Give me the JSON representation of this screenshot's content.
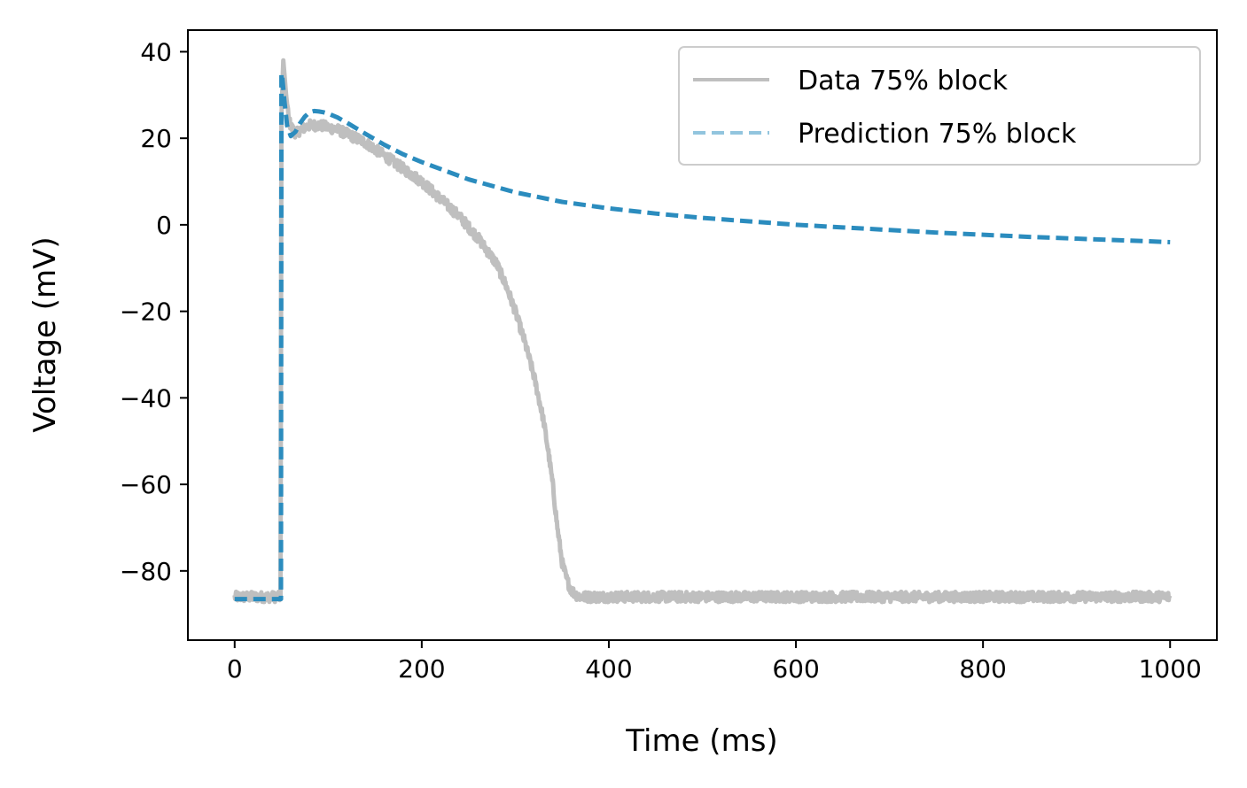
{
  "chart_data": {
    "type": "line",
    "title": "",
    "xlabel": "Time (ms)",
    "ylabel": "Voltage (mV)",
    "xlim": [
      -50,
      1050
    ],
    "ylim": [
      -96,
      45
    ],
    "x_ticks": [
      0,
      200,
      400,
      600,
      800,
      1000
    ],
    "y_ticks": [
      40,
      20,
      0,
      -20,
      -40,
      -60,
      -80
    ],
    "x_tick_labels": [
      "0",
      "200",
      "400",
      "600",
      "800",
      "1000"
    ],
    "y_tick_labels": [
      "40",
      "20",
      "0",
      "−20",
      "−40",
      "−60",
      "−80"
    ],
    "grid": false,
    "legend_position": "top-right",
    "series": [
      {
        "name": "Data 75% block",
        "color": "#bfbfbf",
        "style": "solid",
        "noise_amplitude_mV": 1.2,
        "x": [
          0,
          49,
          50,
          52,
          55,
          58,
          62,
          66,
          70,
          75,
          80,
          85,
          90,
          95,
          100,
          110,
          120,
          140,
          160,
          180,
          200,
          220,
          240,
          260,
          270,
          280,
          290,
          300,
          310,
          320,
          330,
          335,
          340,
          345,
          350,
          355,
          360,
          365,
          370,
          380,
          400,
          500,
          600,
          700,
          800,
          900,
          1000
        ],
        "y": [
          -86,
          -86,
          25,
          38,
          30,
          24,
          22,
          21,
          22,
          22.5,
          23,
          23,
          23,
          22.8,
          22.5,
          22,
          21,
          19,
          16,
          13,
          10,
          6,
          2,
          -3,
          -6,
          -9,
          -14,
          -20,
          -27,
          -35,
          -45,
          -52,
          -60,
          -70,
          -78,
          -82,
          -84.5,
          -85.5,
          -86,
          -86,
          -86,
          -86,
          -86,
          -86,
          -86,
          -86,
          -86
        ]
      },
      {
        "name": "Prediction 75% block",
        "color": "#2b8cbe",
        "legend_color": "#92c5de",
        "style": "dashed",
        "x": [
          0,
          49.5,
          50,
          51,
          53,
          56,
          60,
          65,
          70,
          75,
          80,
          85,
          90,
          95,
          100,
          110,
          120,
          140,
          160,
          180,
          200,
          250,
          300,
          350,
          400,
          450,
          500,
          550,
          600,
          650,
          700,
          750,
          800,
          850,
          900,
          950,
          1000
        ],
        "y": [
          -86.5,
          -86.5,
          35,
          34,
          29,
          23,
          20.5,
          21.5,
          23.5,
          25,
          26,
          26.3,
          26.2,
          26,
          25.7,
          24.8,
          23.6,
          21,
          18.5,
          16.3,
          14.5,
          10.5,
          7.5,
          5.3,
          3.8,
          2.6,
          1.6,
          0.8,
          0,
          -0.6,
          -1.2,
          -1.8,
          -2.3,
          -2.8,
          -3.2,
          -3.6,
          -4
        ]
      }
    ]
  }
}
